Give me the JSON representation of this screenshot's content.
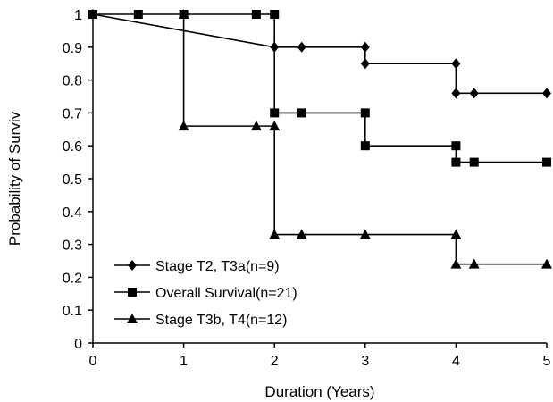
{
  "chart_data": {
    "type": "line",
    "title": "",
    "xlabel": "Duration (Years)",
    "ylabel": "Probability of Surviv",
    "xlim": [
      0,
      5
    ],
    "ylim": [
      0,
      1
    ],
    "x_ticks": [
      "0",
      "1",
      "2",
      "3",
      "4",
      "5"
    ],
    "y_ticks": [
      "0",
      "0.1",
      "0.2",
      "0.3",
      "0.4",
      "0.5",
      "0.6",
      "0.7",
      "0.8",
      "0.9",
      "1"
    ],
    "grid": false,
    "legend_position": "bottom-left",
    "step_style": "step-after",
    "series": [
      {
        "name": "Stage T2, T3a(n=9)",
        "marker": "diamond",
        "color": "#000000",
        "points": [
          [
            0,
            1
          ],
          [
            2,
            0.9
          ],
          [
            2.3,
            0.9
          ],
          [
            3,
            0.9
          ],
          [
            3,
            0.85
          ],
          [
            4,
            0.85
          ],
          [
            4,
            0.76
          ],
          [
            4.2,
            0.76
          ],
          [
            5,
            0.76
          ]
        ]
      },
      {
        "name": "Overall Survival(n=21)",
        "marker": "square",
        "color": "#000000",
        "points": [
          [
            0,
            1
          ],
          [
            0.5,
            1
          ],
          [
            1,
            1
          ],
          [
            1.8,
            1
          ],
          [
            2,
            1
          ],
          [
            2,
            0.7
          ],
          [
            2.3,
            0.7
          ],
          [
            3,
            0.7
          ],
          [
            3,
            0.6
          ],
          [
            4,
            0.6
          ],
          [
            4,
            0.55
          ],
          [
            4.2,
            0.55
          ],
          [
            5,
            0.55
          ]
        ]
      },
      {
        "name": "Stage T3b, T4(n=12)",
        "marker": "triangle",
        "color": "#000000",
        "points": [
          [
            1,
            1
          ],
          [
            1,
            0.66
          ],
          [
            1.8,
            0.66
          ],
          [
            2,
            0.66
          ],
          [
            2,
            0.33
          ],
          [
            2.3,
            0.33
          ],
          [
            3,
            0.33
          ],
          [
            4,
            0.33
          ],
          [
            4,
            0.24
          ],
          [
            4.2,
            0.24
          ],
          [
            5,
            0.24
          ]
        ]
      }
    ]
  }
}
